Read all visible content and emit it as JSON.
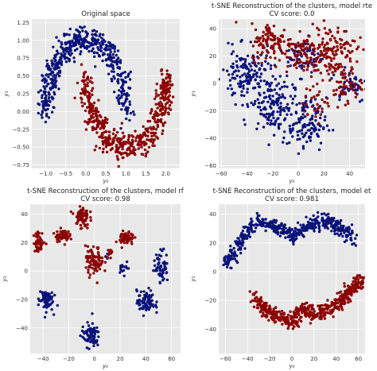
{
  "figure": {
    "colors": {
      "class_0": "#0a137a",
      "class_1": "#8b0000",
      "panel_bg": "#e8e8e8",
      "grid": "#ffffff"
    }
  },
  "chart_data": [
    {
      "type": "scatter",
      "title_lines": [
        "Original space"
      ],
      "xlabel": "y₀",
      "ylabel": "y₁",
      "xlim": [
        -1.35,
        2.35
      ],
      "ylim": [
        -0.8,
        1.3
      ],
      "xticks": [
        -1.0,
        -0.5,
        0.0,
        0.5,
        1.0,
        1.5,
        2.0
      ],
      "xtick_labels": [
        "−1.0",
        "−0.5",
        "0.0",
        "0.5",
        "1.0",
        "1.5",
        "2.0"
      ],
      "yticks": [
        -0.75,
        -0.5,
        -0.25,
        0.0,
        0.25,
        0.5,
        0.75,
        1.0,
        1.25
      ],
      "ytick_labels": [
        "−0.75",
        "−0.50",
        "−0.25",
        "0.00",
        "0.25",
        "0.50",
        "0.75",
        "1.00",
        "1.25"
      ],
      "grid": true,
      "series": [
        {
          "color": "#0a137a",
          "shape": "moon_upper",
          "center": [
            0.0,
            0.0
          ],
          "radius": 1.0,
          "angle_deg": [
            0,
            180
          ],
          "noise": 0.1,
          "n": 500
        },
        {
          "color": "#8b0000",
          "shape": "moon_lower",
          "center": [
            1.0,
            0.5
          ],
          "radius": 1.0,
          "angle_deg": [
            180,
            360
          ],
          "noise": 0.1,
          "n": 500
        }
      ]
    },
    {
      "type": "scatter",
      "title_lines": [
        "t-SNE Reconstruction of the clusters, model rte",
        "CV score: 0.0"
      ],
      "xlabel": "y₀",
      "ylabel": "y₁",
      "xlim": [
        -62,
        52
      ],
      "ylim": [
        -62,
        47
      ],
      "xticks": [
        -60,
        -40,
        -20,
        0,
        20,
        40
      ],
      "xtick_labels": [
        "−60",
        "−40",
        "−20",
        "0",
        "20",
        "40"
      ],
      "yticks": [
        -60,
        -40,
        -20,
        0,
        20,
        40
      ],
      "ytick_labels": [
        "−60",
        "−40",
        "−20",
        "0",
        "20",
        "40"
      ],
      "grid": true,
      "series": [
        {
          "color": "#0a137a",
          "shape": "blobs",
          "clusters": [
            [
              -40,
              5,
              14,
              14,
              150
            ],
            [
              -20,
              -15,
              12,
              14,
              130
            ],
            [
              5,
              -30,
              12,
              14,
              120
            ],
            [
              5,
              20,
              10,
              10,
              60
            ],
            [
              40,
              0,
              10,
              10,
              40
            ]
          ]
        },
        {
          "color": "#8b0000",
          "shape": "blobs",
          "clusters": [
            [
              -20,
              30,
              12,
              10,
              110
            ],
            [
              25,
              25,
              14,
              12,
              130
            ],
            [
              5,
              20,
              10,
              10,
              70
            ],
            [
              35,
              0,
              10,
              10,
              60
            ],
            [
              15,
              -15,
              8,
              8,
              30
            ]
          ]
        }
      ]
    },
    {
      "type": "scatter",
      "title_lines": [
        "t-SNE Reconstruction of the clusters, model rf",
        "CV score: 0.98"
      ],
      "xlabel": "y₀",
      "ylabel": "y₁",
      "xlim": [
        -50,
        67
      ],
      "ylim": [
        -58,
        47
      ],
      "xticks": [
        -40,
        -20,
        0,
        20,
        40,
        60
      ],
      "xtick_labels": [
        "−40",
        "−20",
        "0",
        "20",
        "40",
        "60"
      ],
      "yticks": [
        -40,
        -20,
        0,
        20,
        40
      ],
      "ytick_labels": [
        "−40",
        "−20",
        "0",
        "20",
        "40"
      ],
      "grid": true,
      "series": [
        {
          "color": "#0a137a",
          "shape": "blobs",
          "clusters": [
            [
              -38,
              -20,
              4,
              6,
              70
            ],
            [
              -3,
              -45,
              5,
              6,
              80
            ],
            [
              40,
              -22,
              5,
              6,
              80
            ],
            [
              52,
              3,
              4,
              8,
              60
            ],
            [
              23,
              3,
              3,
              3,
              15
            ],
            [
              10,
              10,
              2,
              2,
              4
            ]
          ]
        },
        {
          "color": "#8b0000",
          "shape": "blobs",
          "clusters": [
            [
              -43,
              20,
              3,
              5,
              50
            ],
            [
              -25,
              25,
              4,
              3,
              60
            ],
            [
              -10,
              38,
              4,
              6,
              70
            ],
            [
              0,
              7,
              5,
              7,
              80
            ],
            [
              25,
              23,
              4,
              4,
              60
            ],
            [
              12,
              13,
              2,
              2,
              10
            ]
          ]
        }
      ]
    },
    {
      "type": "scatter",
      "title_lines": [
        "t-SNE Reconstruction of the clusters, model et",
        "CV score: 0.981"
      ],
      "xlabel": "y₀",
      "ylabel": "y₁",
      "xlim": [
        -66,
        66
      ],
      "ylim": [
        -57,
        47
      ],
      "xticks": [
        -60,
        -40,
        -20,
        0,
        20,
        40,
        60
      ],
      "xtick_labels": [
        "−60",
        "−40",
        "−20",
        "0",
        "20",
        "40",
        "60"
      ],
      "yticks": [
        -40,
        -20,
        0,
        20,
        40
      ],
      "ytick_labels": [
        "−40",
        "−20",
        "0",
        "20",
        "40"
      ],
      "grid": true,
      "series": [
        {
          "color": "#0a137a",
          "shape": "path",
          "width": 5,
          "n": 500,
          "path": [
            [
              -60,
              5
            ],
            [
              -50,
              15
            ],
            [
              -40,
              28
            ],
            [
              -30,
              35
            ],
            [
              -10,
              30
            ],
            [
              0,
              25
            ],
            [
              15,
              32
            ],
            [
              30,
              35
            ],
            [
              45,
              30
            ],
            [
              55,
              22
            ]
          ]
        },
        {
          "color": "#8b0000",
          "shape": "path",
          "width": 5,
          "n": 500,
          "path": [
            [
              -35,
              -18
            ],
            [
              -25,
              -25
            ],
            [
              -15,
              -30
            ],
            [
              0,
              -35
            ],
            [
              10,
              -25
            ],
            [
              20,
              -30
            ],
            [
              35,
              -25
            ],
            [
              45,
              -20
            ],
            [
              55,
              -12
            ],
            [
              62,
              -5
            ]
          ]
        }
      ]
    }
  ]
}
